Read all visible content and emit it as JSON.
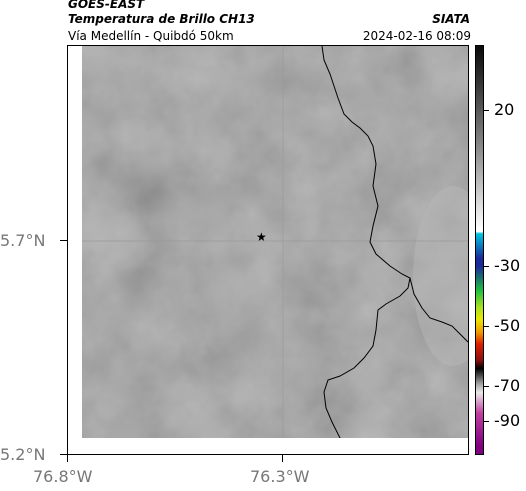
{
  "header": {
    "satellite": "GOES-EAST",
    "product": "Temperatura de Brillo CH13",
    "region": "Vía Medellín - Quibdó 50km",
    "agency": "SIATA",
    "datetime": "2024-02-16 08:09"
  },
  "map": {
    "lat_labels": [
      "5.7°N",
      "5.2°N"
    ],
    "lon_labels": [
      "76.8°W",
      "76.3°W"
    ],
    "marker_icon": "star-icon",
    "marker_glyph": "★"
  },
  "colorbar": {
    "tick_labels": [
      "20",
      "-30",
      "-50",
      "-70",
      "-90"
    ],
    "colors": {
      "warm_top": "#0a0a0a",
      "gray_mid": "#8a8a8a",
      "white": "#ffffff",
      "cyan": "#00c8e0",
      "blue": "#1a2a9a",
      "green": "#20c040",
      "yellow": "#e8e800",
      "red": "#e02000",
      "magenta": "#c040a0"
    }
  }
}
